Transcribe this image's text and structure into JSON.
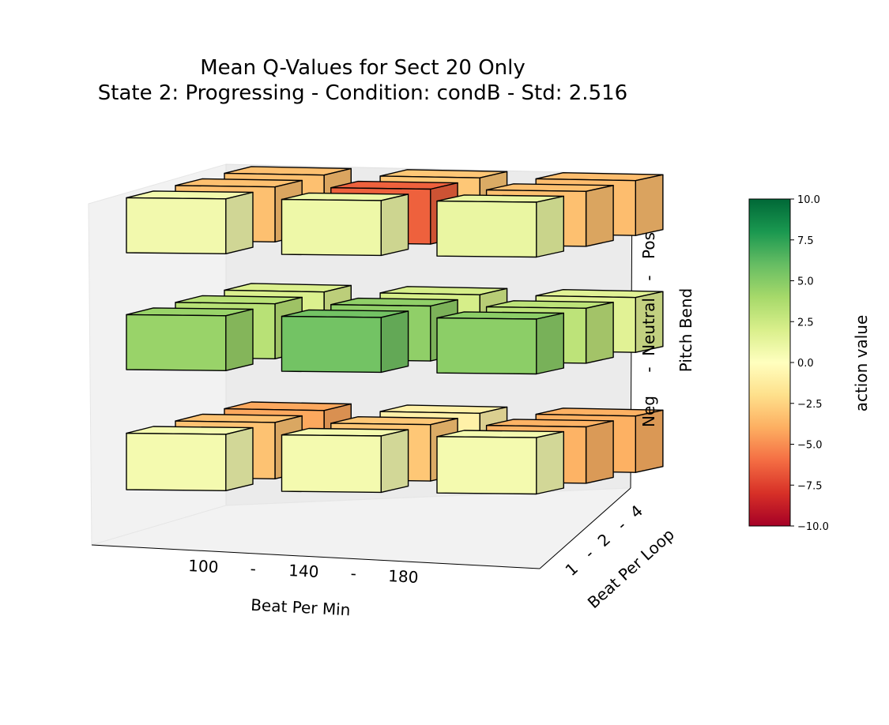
{
  "chart_data": {
    "type": "3d-bar",
    "title_line1": "Mean Q-Values for Sect 20 Only",
    "title_line2": "State 2: Progressing  -  Condition: condB  -  Std: 2.516",
    "x_label": "Beat Per Min",
    "x_ticks": [
      "100",
      "-",
      "140",
      "-",
      "180"
    ],
    "y_label": "Beat Per Loop",
    "y_ticks": [
      "1",
      "-",
      "2",
      "-",
      "4"
    ],
    "z_label": "Pitch Bend",
    "z_ticks": [
      "Neg",
      "-",
      "Neutral",
      "-",
      "Pos"
    ],
    "colorbar": {
      "label": "action value",
      "range": [
        -10,
        10
      ],
      "ticks": [
        "10.0",
        "7.5",
        "5.0",
        "2.5",
        "0.0",
        "−2.5",
        "−5.0",
        "−7.5",
        "−10.0"
      ],
      "colors": [
        "#a50026",
        "#d73027",
        "#f46d43",
        "#fdae61",
        "#fee08b",
        "#ffffbf",
        "#d9ef8b",
        "#a6d96a",
        "#66bd63",
        "#1a9850",
        "#006837"
      ]
    },
    "cells": [
      {
        "bpm": "100",
        "bpl": "1",
        "pitch": "Neg",
        "value": 0.6
      },
      {
        "bpm": "100",
        "bpl": "2",
        "pitch": "Neg",
        "value": -3.2
      },
      {
        "bpm": "100",
        "bpl": "4",
        "pitch": "Neg",
        "value": -4.2
      },
      {
        "bpm": "140",
        "bpl": "1",
        "pitch": "Neg",
        "value": 0.6
      },
      {
        "bpm": "140",
        "bpl": "2",
        "pitch": "Neg",
        "value": -3.0
      },
      {
        "bpm": "140",
        "bpl": "4",
        "pitch": "Neg",
        "value": -0.9
      },
      {
        "bpm": "180",
        "bpl": "1",
        "pitch": "Neg",
        "value": 0.6
      },
      {
        "bpm": "180",
        "bpl": "2",
        "pitch": "Neg",
        "value": -3.8
      },
      {
        "bpm": "180",
        "bpl": "4",
        "pitch": "Neg",
        "value": -3.9
      },
      {
        "bpm": "100",
        "bpl": "1",
        "pitch": "Neutral",
        "value": 4.4
      },
      {
        "bpm": "100",
        "bpl": "2",
        "pitch": "Neutral",
        "value": 3.3
      },
      {
        "bpm": "100",
        "bpl": "4",
        "pitch": "Neutral",
        "value": 1.9
      },
      {
        "bpm": "140",
        "bpl": "1",
        "pitch": "Neutral",
        "value": 5.6
      },
      {
        "bpm": "140",
        "bpl": "2",
        "pitch": "Neutral",
        "value": 4.7
      },
      {
        "bpm": "140",
        "bpl": "4",
        "pitch": "Neutral",
        "value": 2.1
      },
      {
        "bpm": "180",
        "bpl": "1",
        "pitch": "Neutral",
        "value": 4.8
      },
      {
        "bpm": "180",
        "bpl": "2",
        "pitch": "Neutral",
        "value": 3.1
      },
      {
        "bpm": "180",
        "bpl": "4",
        "pitch": "Neutral",
        "value": 1.6
      },
      {
        "bpm": "100",
        "bpl": "1",
        "pitch": "Pos",
        "value": 0.7
      },
      {
        "bpm": "100",
        "bpl": "2",
        "pitch": "Pos",
        "value": -3.3
      },
      {
        "bpm": "100",
        "bpl": "4",
        "pitch": "Pos",
        "value": -3.3
      },
      {
        "bpm": "140",
        "bpl": "1",
        "pitch": "Pos",
        "value": 0.9
      },
      {
        "bpm": "140",
        "bpl": "2",
        "pitch": "Pos",
        "value": -6.4
      },
      {
        "bpm": "140",
        "bpl": "4",
        "pitch": "Pos",
        "value": -3.0
      },
      {
        "bpm": "180",
        "bpl": "1",
        "pitch": "Pos",
        "value": 1.1
      },
      {
        "bpm": "180",
        "bpl": "2",
        "pitch": "Pos",
        "value": -3.3
      },
      {
        "bpm": "180",
        "bpl": "4",
        "pitch": "Pos",
        "value": -3.4
      }
    ]
  }
}
